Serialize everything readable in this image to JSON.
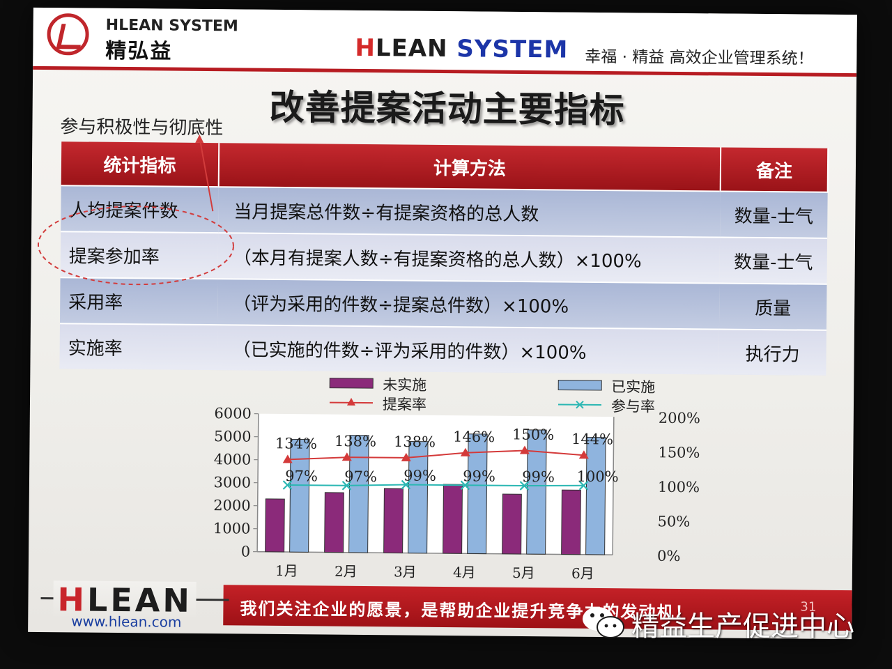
{
  "header": {
    "logo_en": "HLEAN SYSTEM",
    "logo_cn": "精弘益",
    "brand_h": "H",
    "brand_lean": "LEAN ",
    "brand_system": "SYSTEM",
    "tagline": "幸福 · 精益  高效企业管理系统！"
  },
  "title": "改善提案活动主要指标",
  "annotation": "参与积极性与彻底性",
  "table": {
    "headers": [
      "统计指标",
      "计算方法",
      "备注"
    ],
    "rows": [
      {
        "metric": "人均提案件数",
        "method": "当月提案总件数÷有提案资格的总人数",
        "note": "数量-士气"
      },
      {
        "metric": "提案参加率",
        "method": "（本月有提案人数÷有提案资格的总人数）×100%",
        "note": "数量-士气"
      },
      {
        "metric": "采用率",
        "method": "（评为采用的件数÷提案总件数）×100%",
        "note": "质量"
      },
      {
        "metric": "实施率",
        "method": "（已实施的件数÷评为采用的件数）×100%",
        "note": "执行力"
      }
    ]
  },
  "chart_data": {
    "type": "bar",
    "categories": [
      "1月",
      "2月",
      "3月",
      "4月",
      "5月",
      "6月"
    ],
    "series": [
      {
        "name": "未实施",
        "kind": "bar",
        "axis": "left",
        "values": [
          2300,
          2600,
          2800,
          3000,
          2600,
          2800
        ],
        "color": "#8b2a7a"
      },
      {
        "name": "已实施",
        "kind": "bar",
        "axis": "left",
        "values": [
          4900,
          5100,
          4850,
          5200,
          5400,
          5100
        ],
        "color": "#8fb4de"
      },
      {
        "name": "提案率",
        "kind": "line",
        "axis": "right",
        "values": [
          134,
          138,
          138,
          146,
          150,
          144
        ],
        "labels": [
          "134%",
          "138%",
          "138%",
          "146%",
          "150%",
          "144%"
        ],
        "color": "#d43a3a"
      },
      {
        "name": "参与率",
        "kind": "line",
        "axis": "right",
        "values": [
          97,
          97,
          99,
          99,
          99,
          100
        ],
        "labels": [
          "97%",
          "97%",
          "99%",
          "99%",
          "99%",
          "100%"
        ],
        "color": "#2bb7b3"
      }
    ],
    "y_left": {
      "min": 0,
      "max": 6000,
      "ticks": [
        "0",
        "1000",
        "2000",
        "3000",
        "4000",
        "5000",
        "6000"
      ]
    },
    "y_right": {
      "min": 0,
      "max": 200,
      "ticks": [
        "0%",
        "50%",
        "100%",
        "150%",
        "200%"
      ]
    },
    "grid": false,
    "legend_position": "top"
  },
  "footer": {
    "slogan": "我们关注企业的愿景，是帮助企业提升竞争力的发动机！",
    "page_number": "31",
    "logo_h": "H",
    "logo_rest": "LEAN",
    "url": "www.hlean.com"
  },
  "overlay": {
    "label": "精益生产促进中心"
  }
}
